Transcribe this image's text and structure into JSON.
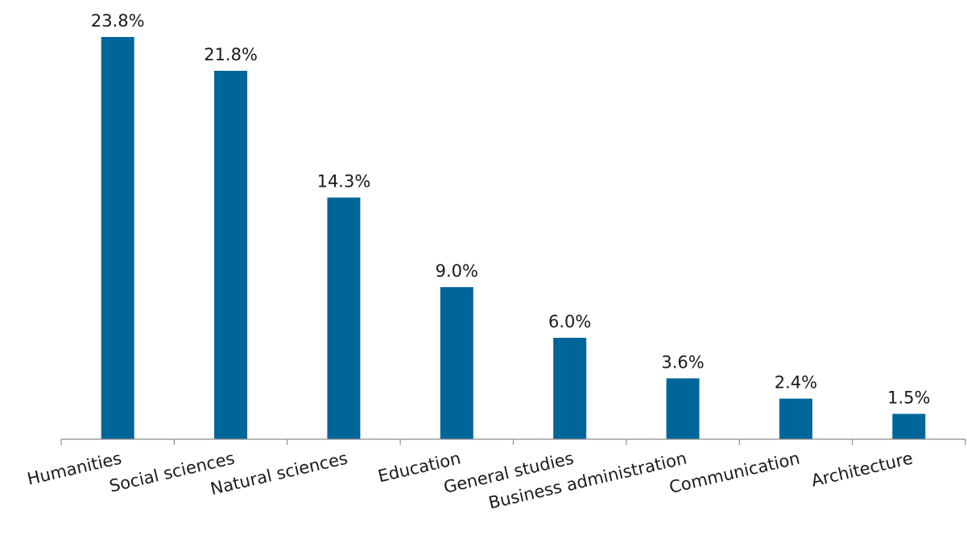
{
  "chart_data": {
    "type": "bar",
    "title": "",
    "xlabel": "",
    "ylabel": "",
    "categories": [
      "Humanities",
      "Social sciences",
      "Natural sciences",
      "Education",
      "General studies",
      "Business administration",
      "Communication",
      "Architecture"
    ],
    "values": [
      23.8,
      21.8,
      14.3,
      9.0,
      6.0,
      3.6,
      2.4,
      1.5
    ],
    "value_labels": [
      "23.8%",
      "21.8%",
      "14.3%",
      "9.0%",
      "6.0%",
      "3.6%",
      "2.4%",
      "1.5%"
    ],
    "ylim": [
      0,
      23.8
    ],
    "grid": false,
    "legend": "none",
    "bar_color": "#006699"
  }
}
